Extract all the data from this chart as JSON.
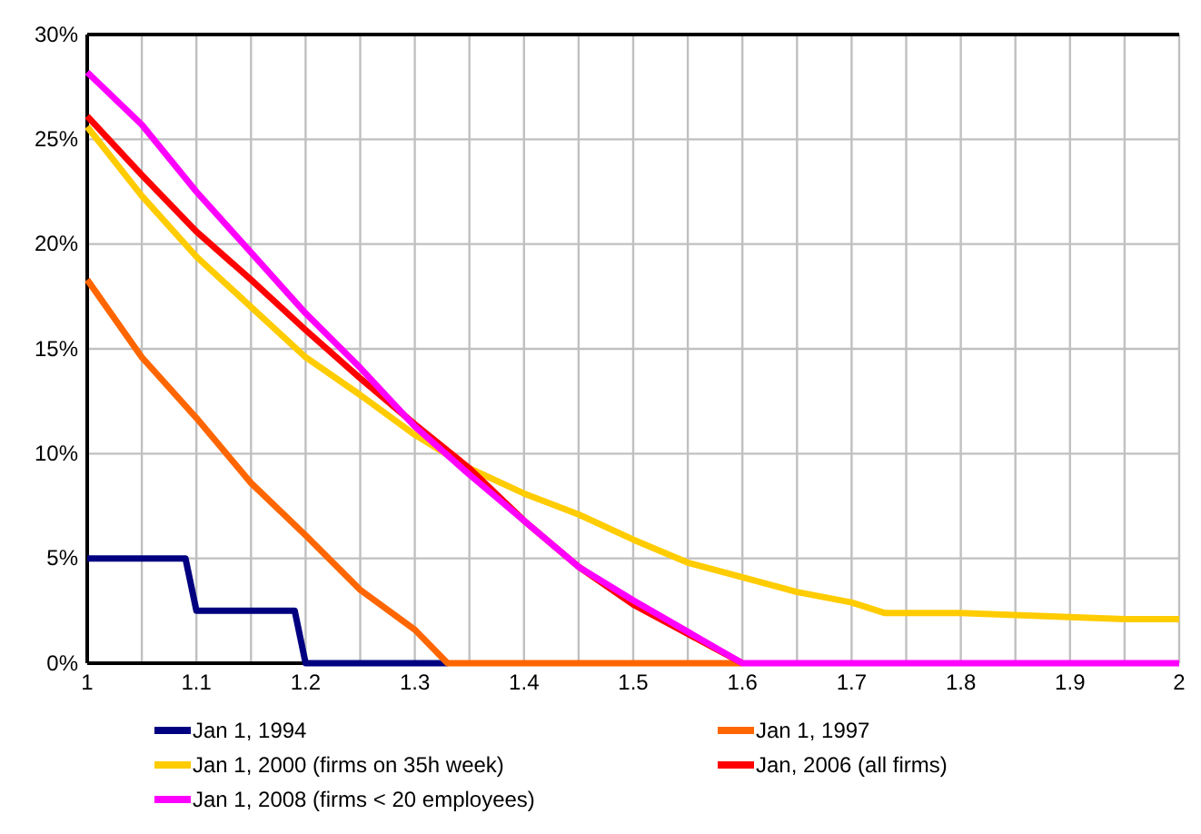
{
  "chart_data": {
    "type": "line",
    "xlim": [
      1,
      2
    ],
    "ylim": [
      0,
      30
    ],
    "xticks": [
      1,
      {
        "value": 1.05,
        "label": null
      },
      1.1,
      {
        "value": 1.15,
        "label": null
      },
      1.2,
      {
        "value": 1.25,
        "label": null
      },
      1.3,
      {
        "value": 1.35,
        "label": null
      },
      1.4,
      {
        "value": 1.45,
        "label": null
      },
      1.5,
      {
        "value": 1.55,
        "label": null
      },
      1.6,
      {
        "value": 1.65,
        "label": null
      },
      1.7,
      {
        "value": 1.75,
        "label": null
      },
      1.8,
      {
        "value": 1.85,
        "label": null
      },
      1.9,
      {
        "value": 1.95,
        "label": null
      },
      2
    ],
    "yticks": [
      {
        "value": 0,
        "label": "0%"
      },
      {
        "value": 5,
        "label": "5%"
      },
      {
        "value": 10,
        "label": "10%"
      },
      {
        "value": 15,
        "label": "15%"
      },
      {
        "value": 20,
        "label": "20%"
      },
      {
        "value": 25,
        "label": "25%"
      },
      {
        "value": 30,
        "label": "30%"
      }
    ],
    "grid": true,
    "legend": "bottom",
    "marker": "none",
    "line_style": "solid",
    "series": [
      {
        "name": "Jan 1, 1994",
        "color": "#000080",
        "x": [
          1,
          1.09,
          1.1,
          1.19,
          1.2,
          1.33
        ],
        "values": [
          5,
          5,
          2.5,
          2.5,
          0,
          0
        ]
      },
      {
        "name": "Jan 1, 1997",
        "color": "#ff6600",
        "x": [
          1,
          1.05,
          1.1,
          1.15,
          1.2,
          1.25,
          1.3,
          1.33,
          1.6
        ],
        "values": [
          18.3,
          14.6,
          11.7,
          8.6,
          6.1,
          3.5,
          1.6,
          0,
          0
        ]
      },
      {
        "name": "Jan 1, 2000 (firms on 35h week)",
        "color": "#ffcc00",
        "x": [
          1,
          1.05,
          1.1,
          1.15,
          1.2,
          1.25,
          1.3,
          1.35,
          1.4,
          1.45,
          1.5,
          1.55,
          1.6,
          1.65,
          1.7,
          1.73,
          1.8,
          1.85,
          1.9,
          1.95,
          2
        ],
        "values": [
          25.6,
          22.3,
          19.4,
          17,
          14.6,
          12.8,
          10.9,
          9.3,
          8.1,
          7.1,
          5.9,
          4.8,
          4.1,
          3.4,
          2.9,
          2.4,
          2.4,
          2.3,
          2.2,
          2.1,
          2.1
        ]
      },
      {
        "name": "Jan, 2006 (all firms)",
        "color": "#ff0000",
        "x": [
          1,
          1.05,
          1.1,
          1.15,
          1.2,
          1.25,
          1.3,
          1.35,
          1.4,
          1.45,
          1.5,
          1.55,
          1.6
        ],
        "values": [
          26.1,
          23.3,
          20.6,
          18.3,
          15.9,
          13.6,
          11.4,
          9.3,
          6.8,
          4.6,
          2.8,
          1.4,
          0
        ]
      },
      {
        "name": "Jan 1,  2008 (firms < 20 employees)",
        "color": "#ff00ff",
        "x": [
          1,
          1.05,
          1.1,
          1.15,
          1.2,
          1.25,
          1.3,
          1.35,
          1.4,
          1.45,
          1.5,
          1.55,
          1.6,
          2
        ],
        "values": [
          28.2,
          25.7,
          22.5,
          19.6,
          16.7,
          14.1,
          11.3,
          9,
          6.8,
          4.6,
          3,
          1.5,
          0,
          0
        ]
      }
    ]
  }
}
